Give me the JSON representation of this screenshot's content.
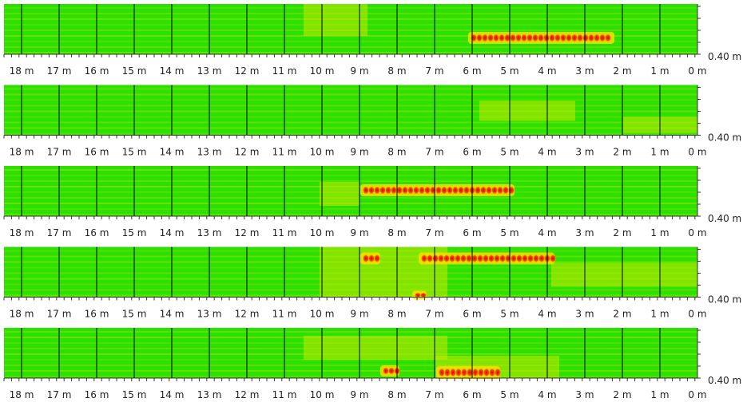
{
  "x_axis": {
    "labels": [
      "18 m",
      "17 m",
      "16 m",
      "15 m",
      "14 m",
      "13 m",
      "12 m",
      "11 m",
      "10 m",
      "9 m",
      "8 m",
      "7 m",
      "6 m",
      "5 m",
      "4 m",
      "3 m",
      "2 m",
      "1 m",
      "0 m"
    ]
  },
  "depth_label": "0.40 m"
}
